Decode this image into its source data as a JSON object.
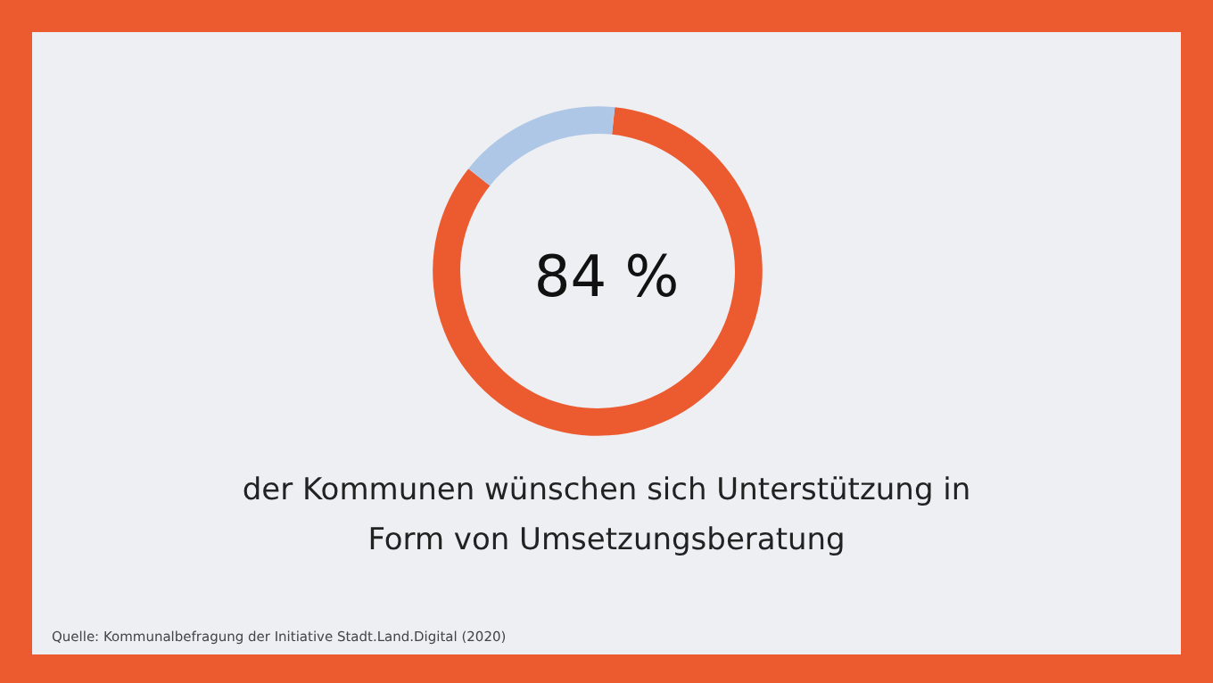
{
  "chart_data": {
    "type": "donut",
    "title": "84 %",
    "subtitle": "der Kommunen wünschen sich Unterstützung in\nForm von Umsetzungsberatung",
    "categories": [
      null,
      null
    ],
    "values": [
      84,
      16
    ],
    "colors": [
      "#ec5b30",
      "#afc7e7"
    ],
    "annotations": [
      "Quelle: Kommunalbefragung der Initiative Stadt.Land.Digital (2020)"
    ]
  }
}
